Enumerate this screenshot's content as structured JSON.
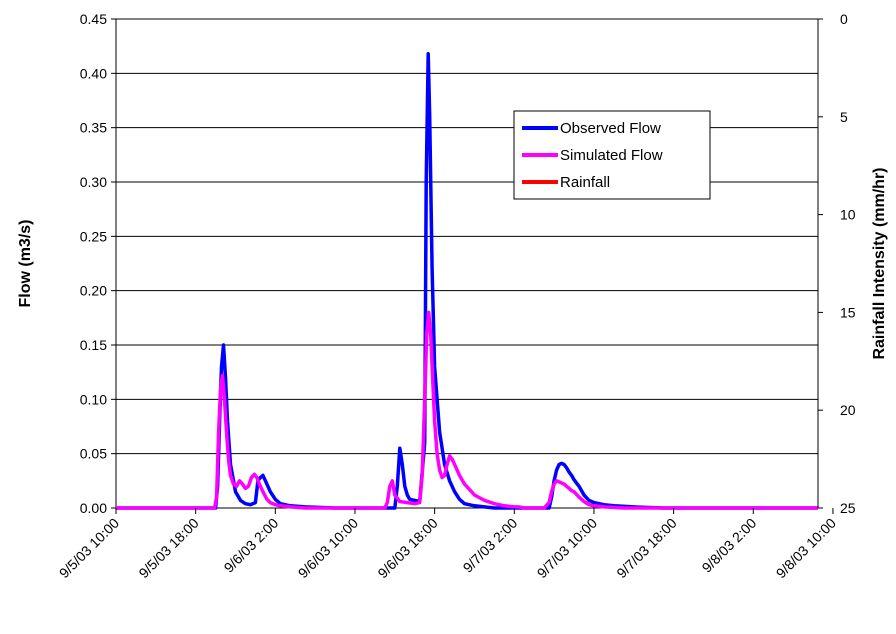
{
  "chart_data": {
    "type": "line",
    "title": "",
    "xlabel": "",
    "ylabel": "Flow (m3/s)",
    "y2label": "Rainfall Intensity (mm/hr)",
    "ylim": [
      0,
      0.45
    ],
    "y2lim": [
      25,
      0
    ],
    "y2_reversed": true,
    "grid": true,
    "legend_position": "top-right",
    "x_tick_labels": [
      "9/5/03 10:00",
      "9/5/03 18:00",
      "9/6/03 2:00",
      "9/6/03 10:00",
      "9/6/03 18:00",
      "9/7/03 2:00",
      "9/7/03 10:00",
      "9/7/03 18:00",
      "9/8/03 2:00",
      "9/8/03 10:00"
    ],
    "y_tick_labels": [
      "0.00",
      "0.05",
      "0.10",
      "0.15",
      "0.20",
      "0.25",
      "0.30",
      "0.35",
      "0.40",
      "0.45"
    ],
    "y_tick_values": [
      0,
      0.05,
      0.1,
      0.15,
      0.2,
      0.25,
      0.3,
      0.35,
      0.4,
      0.45
    ],
    "y2_tick_labels": [
      "0",
      "5",
      "10",
      "15",
      "20",
      "25"
    ],
    "y2_tick_values": [
      0,
      5,
      10,
      15,
      20,
      25
    ],
    "series": [
      {
        "name": "Observed Flow",
        "color": "#0000FF",
        "x_hours": [
          0,
          20,
          20.4,
          20.8,
          21.2,
          21.6,
          22,
          22.4,
          23,
          24,
          25,
          26,
          27,
          28,
          28.5,
          29,
          29.5,
          30,
          31,
          32,
          33,
          35,
          38,
          44,
          50,
          56,
          56.5,
          57,
          57.5,
          58,
          58.5,
          59,
          61,
          62,
          62.3,
          62.7,
          63,
          63.5,
          64,
          65,
          66,
          67,
          68,
          69,
          70,
          72,
          74,
          76,
          78,
          80,
          82,
          84,
          86,
          87,
          87.5,
          88,
          88.5,
          89,
          89.5,
          90,
          90.5,
          91,
          91.5,
          92,
          93,
          94,
          95,
          96,
          98,
          100,
          104,
          110,
          120,
          130,
          141
        ],
        "values": [
          0,
          0,
          0.02,
          0.08,
          0.13,
          0.15,
          0.12,
          0.08,
          0.04,
          0.015,
          0.007,
          0.004,
          0.003,
          0.005,
          0.025,
          0.028,
          0.03,
          0.025,
          0.015,
          0.008,
          0.004,
          0.002,
          0.001,
          0,
          0,
          0,
          0.02,
          0.055,
          0.04,
          0.02,
          0.012,
          0.008,
          0.006,
          0.06,
          0.3,
          0.418,
          0.36,
          0.22,
          0.13,
          0.07,
          0.04,
          0.025,
          0.015,
          0.008,
          0.004,
          0.002,
          0.001,
          0,
          0,
          0,
          0,
          0,
          0,
          0,
          0.01,
          0.025,
          0.035,
          0.04,
          0.041,
          0.04,
          0.037,
          0.033,
          0.03,
          0.026,
          0.02,
          0.012,
          0.007,
          0.005,
          0.003,
          0.002,
          0.001,
          0,
          0,
          0,
          0
        ]
      },
      {
        "name": "Simulated Flow",
        "color": "#FF00FF",
        "x_hours": [
          0,
          19.8,
          20.2,
          20.6,
          21,
          21.4,
          21.8,
          22.2,
          22.6,
          23,
          23.6,
          24.2,
          24.8,
          25.4,
          26,
          26.6,
          27.2,
          27.8,
          28.3,
          28.8,
          29.5,
          30.3,
          31,
          32,
          33,
          35,
          38,
          44,
          50,
          54,
          54.5,
          55,
          55.5,
          56,
          57,
          60,
          61,
          61.5,
          62,
          62.4,
          62.8,
          63.2,
          63.6,
          64,
          64.5,
          65,
          65.5,
          66,
          66.5,
          67,
          67.5,
          68,
          69,
          70,
          72,
          74,
          76,
          78,
          80,
          81,
          82,
          83,
          84,
          85,
          86,
          87,
          87.5,
          88,
          88.5,
          89,
          89.5,
          90,
          90.5,
          91,
          91.5,
          92,
          93,
          94,
          95,
          96,
          98,
          102,
          110,
          120,
          130,
          141
        ],
        "values": [
          0,
          0,
          0.01,
          0.07,
          0.11,
          0.122,
          0.1,
          0.07,
          0.045,
          0.03,
          0.022,
          0.02,
          0.025,
          0.022,
          0.018,
          0.02,
          0.028,
          0.031,
          0.028,
          0.022,
          0.015,
          0.008,
          0.005,
          0.003,
          0.002,
          0.001,
          0,
          0,
          0,
          0,
          0.005,
          0.02,
          0.025,
          0.012,
          0.006,
          0.004,
          0.005,
          0.03,
          0.1,
          0.16,
          0.18,
          0.16,
          0.12,
          0.08,
          0.05,
          0.035,
          0.028,
          0.03,
          0.04,
          0.048,
          0.045,
          0.04,
          0.03,
          0.022,
          0.012,
          0.007,
          0.004,
          0.002,
          0.001,
          0.001,
          0,
          0,
          0,
          0,
          0,
          0.005,
          0.015,
          0.022,
          0.025,
          0.024,
          0.023,
          0.022,
          0.02,
          0.018,
          0.016,
          0.015,
          0.01,
          0.006,
          0.003,
          0.002,
          0.001,
          0,
          0,
          0,
          0,
          0
        ]
      },
      {
        "name": "Rainfall",
        "color": "#FF0000",
        "x_hours": [],
        "values": []
      }
    ]
  }
}
